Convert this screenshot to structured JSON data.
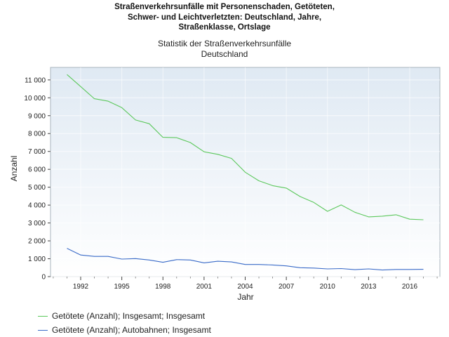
{
  "title_lines": [
    "Straßenverkehrsunfälle mit Personenschaden, Getöteten,",
    "Schwer- und Leichtverletzten: Deutschland, Jahre,",
    "Straßenklasse, Ortslage"
  ],
  "subtitle_lines": [
    "Statistik der Straßenverkehrsunfälle",
    "Deutschland"
  ],
  "colors": {
    "series_1": "#5cc85c",
    "series_2": "#3a6bc8",
    "plot_bg_top": "#dfe9f3",
    "plot_bg_bottom": "#ffffff"
  },
  "chart_data": {
    "type": "line",
    "xlabel": "Jahr",
    "ylabel": "Anzahl",
    "xlim": [
      1989.8,
      2018.2
    ],
    "ylim": [
      0,
      11700
    ],
    "x_ticks": [
      1992,
      1995,
      1998,
      2001,
      2004,
      2007,
      2010,
      2013,
      2016
    ],
    "x_tick_labels": [
      "1992",
      "1995",
      "1998",
      "2001",
      "2004",
      "2007",
      "2010",
      "2013",
      "2016"
    ],
    "y_ticks": [
      0,
      1000,
      2000,
      3000,
      4000,
      5000,
      6000,
      7000,
      8000,
      9000,
      10000,
      11000
    ],
    "y_tick_labels": [
      "0",
      "1 000",
      "2 000",
      "3 000",
      "4 000",
      "5 000",
      "6 000",
      "7 000",
      "8 000",
      "9 000",
      "10 000",
      "11 000"
    ],
    "grid": true,
    "legend_position": "bottom-left",
    "x": [
      1991,
      1992,
      1993,
      1994,
      1995,
      1996,
      1997,
      1998,
      1999,
      2000,
      2001,
      2002,
      2003,
      2004,
      2005,
      2006,
      2007,
      2008,
      2009,
      2010,
      2011,
      2012,
      2013,
      2014,
      2015,
      2016,
      2017
    ],
    "series": [
      {
        "name": "Getötete (Anzahl); Insgesamt; Insgesamt",
        "values": [
          11300,
          10630,
          9950,
          9810,
          9450,
          8760,
          8550,
          7790,
          7770,
          7500,
          6980,
          6840,
          6610,
          5840,
          5360,
          5090,
          4950,
          4480,
          4150,
          3650,
          4010,
          3600,
          3340,
          3380,
          3460,
          3210,
          3180
        ]
      },
      {
        "name": "Getötete (Anzahl); Autobahnen; Insgesamt",
        "values": [
          1580,
          1210,
          1130,
          1130,
          980,
          1010,
          930,
          800,
          950,
          930,
          770,
          860,
          820,
          680,
          680,
          650,
          600,
          500,
          480,
          430,
          450,
          390,
          430,
          370,
          400,
          400,
          410
        ]
      }
    ]
  }
}
